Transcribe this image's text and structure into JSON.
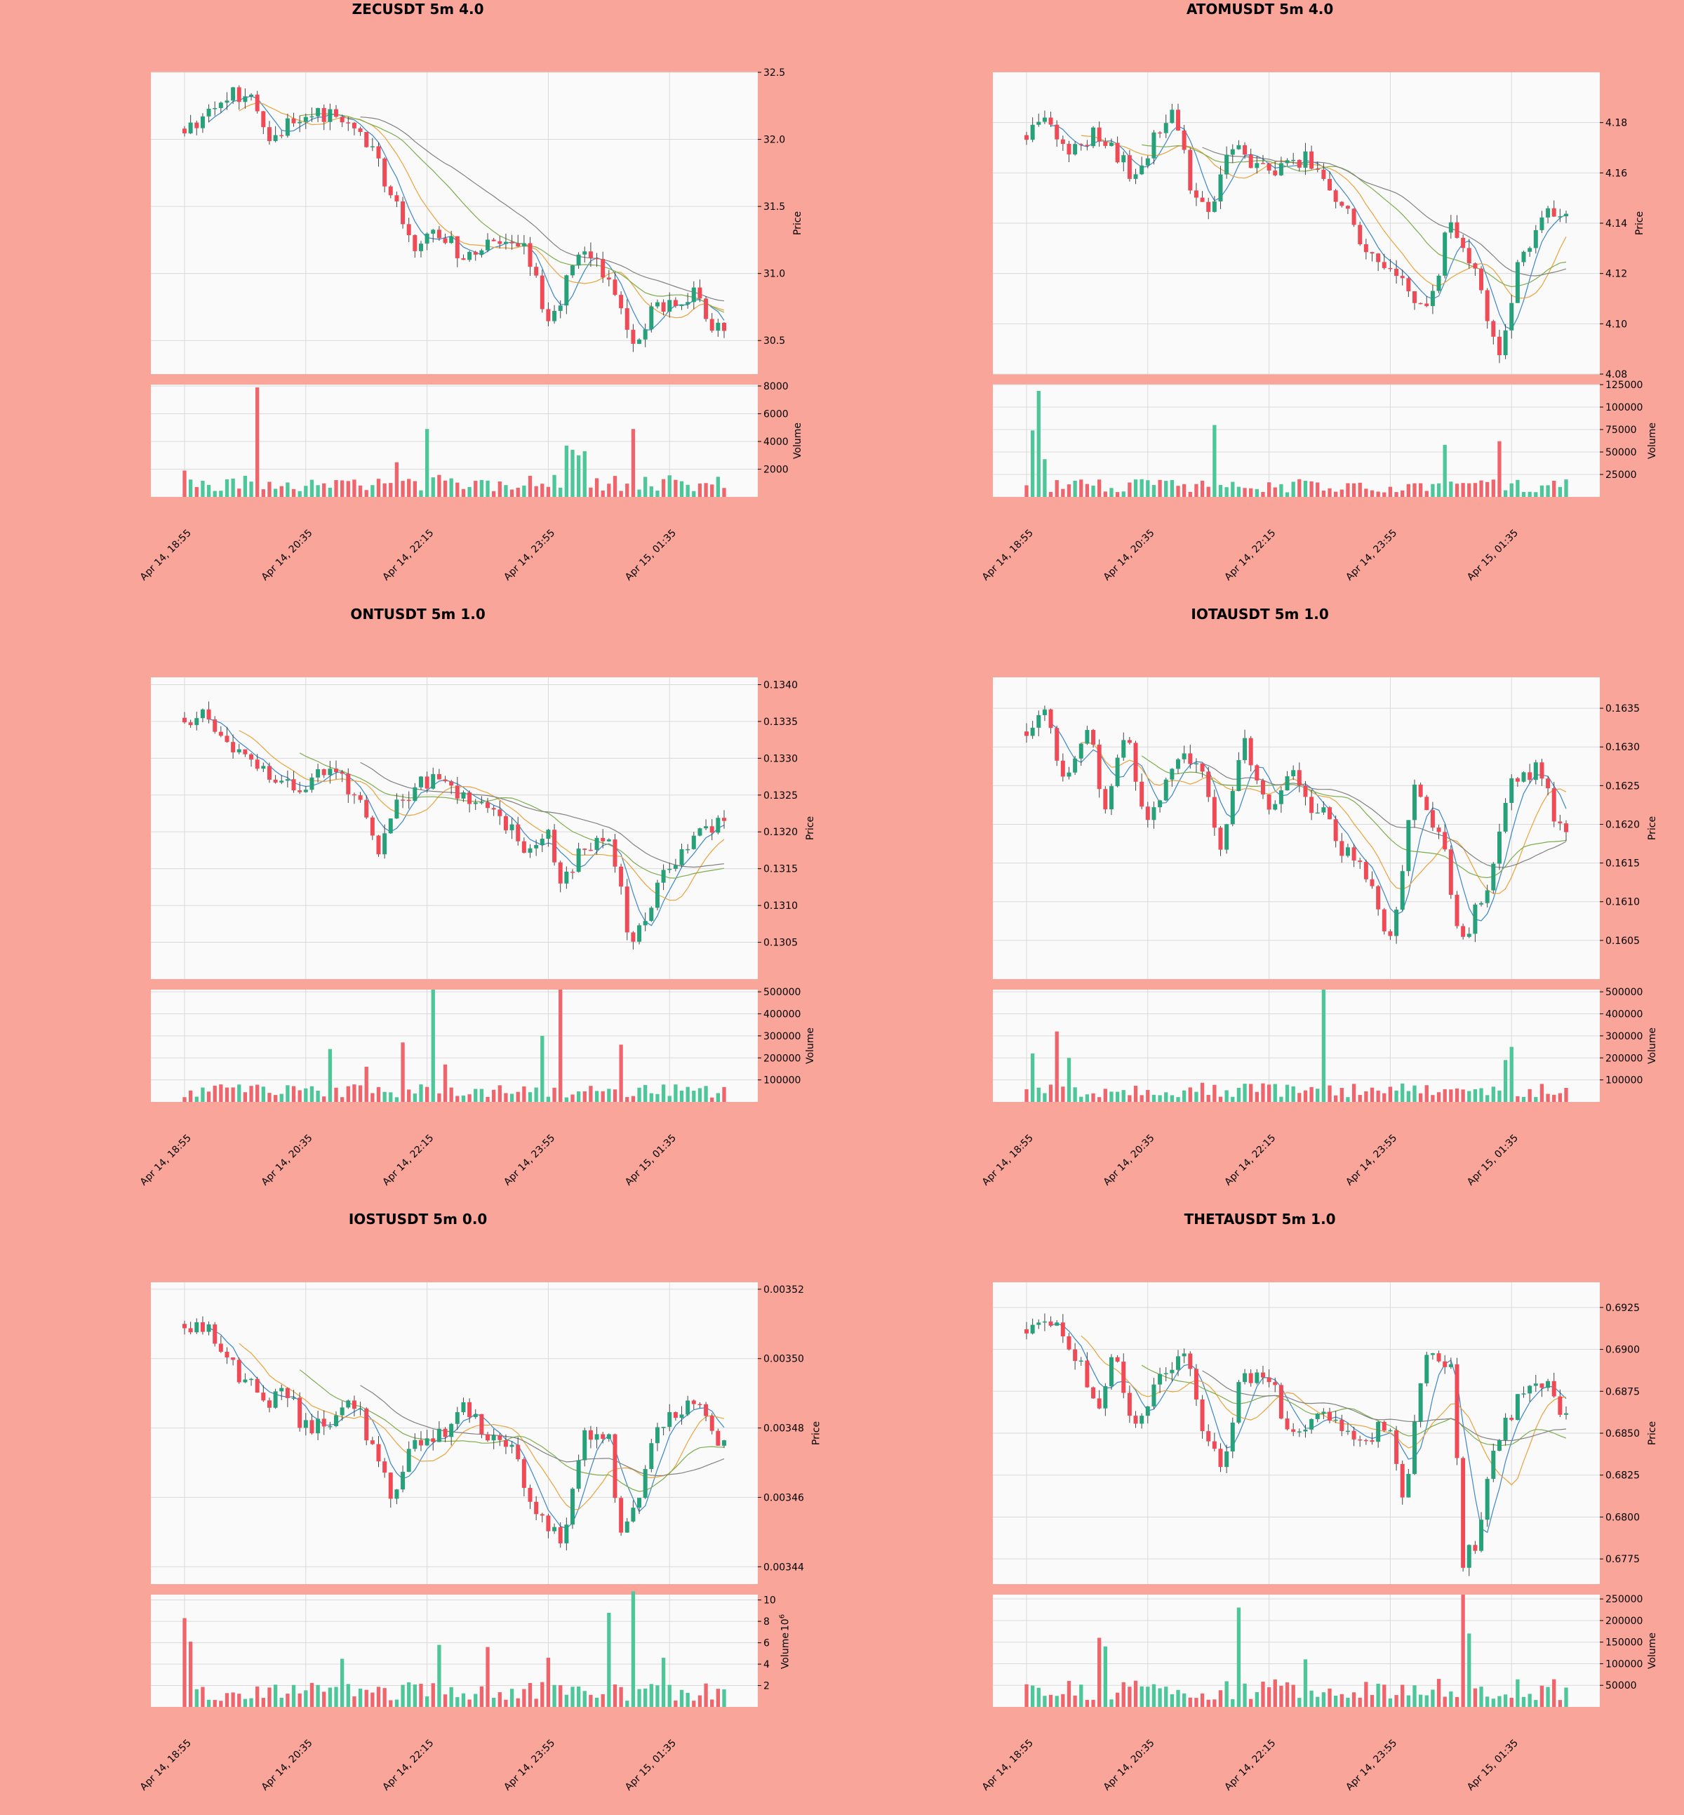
{
  "colors": {
    "figure_bg": "#f9a59a",
    "axes_bg": "#fafafa",
    "up": "#26a17a",
    "down": "#ef4a56",
    "volume_up": "#4dc79a",
    "volume_down": "#f0646c",
    "ma_short": "#3a86c8",
    "ma_mid": "#e8a33c",
    "ma_long": "#808080",
    "ma_extra": "#7cac4c",
    "grid": "#d9d9d9"
  },
  "chart_data": [
    {
      "type": "candlestick",
      "title": "ZECUSDT 5m 4.0",
      "xticks": [
        "Apr 14, 18:55",
        "Apr 14, 20:35",
        "Apr 14, 22:15",
        "Apr 14, 23:55",
        "Apr 15, 01:35"
      ],
      "price_label": "Price",
      "price_ticks": [
        "30.5",
        "31.0",
        "31.5",
        "32.0",
        "32.5"
      ],
      "price_range": [
        30.25,
        32.5
      ],
      "volume_label": "Volume",
      "volume_exponent": "",
      "volume_ticks": [
        "2000",
        "4000",
        "6000",
        "8000"
      ],
      "volume_range": [
        0,
        8100
      ],
      "anchors": [
        [
          0,
          32.08
        ],
        [
          6,
          32.3
        ],
        [
          10,
          32.35
        ],
        [
          14,
          32.05
        ],
        [
          20,
          32.2
        ],
        [
          26,
          32.15
        ],
        [
          30,
          32.0
        ],
        [
          34,
          31.6
        ],
        [
          38,
          31.2
        ],
        [
          42,
          31.3
        ],
        [
          46,
          31.15
        ],
        [
          52,
          31.2
        ],
        [
          56,
          31.2
        ],
        [
          60,
          30.65
        ],
        [
          64,
          31.0
        ],
        [
          66,
          31.15
        ],
        [
          70,
          30.95
        ],
        [
          74,
          30.45
        ],
        [
          78,
          30.75
        ],
        [
          84,
          30.85
        ],
        [
          87,
          30.6
        ]
      ],
      "vol_spikes": [
        [
          0,
          1900
        ],
        [
          12,
          7900
        ],
        [
          35,
          2500
        ],
        [
          40,
          4900
        ],
        [
          63,
          3700
        ],
        [
          64,
          3400
        ],
        [
          65,
          3000
        ],
        [
          66,
          3300
        ],
        [
          74,
          4900
        ]
      ],
      "vol_base": 1100,
      "seed": 11
    },
    {
      "type": "candlestick",
      "title": "ATOMUSDT 5m 4.0",
      "xticks": [
        "Apr 14, 18:55",
        "Apr 14, 20:35",
        "Apr 14, 22:15",
        "Apr 14, 23:55",
        "Apr 15, 01:35"
      ],
      "price_label": "Price",
      "price_ticks": [
        "4.08",
        "4.10",
        "4.12",
        "4.14",
        "4.16",
        "4.18"
      ],
      "price_range": [
        4.08,
        4.2
      ],
      "volume_label": "Volume",
      "volume_exponent": "",
      "volume_ticks": [
        "25000",
        "50000",
        "75000",
        "100000",
        "125000"
      ],
      "volume_range": [
        0,
        125000
      ],
      "anchors": [
        [
          0,
          4.175
        ],
        [
          3,
          4.185
        ],
        [
          6,
          4.17
        ],
        [
          12,
          4.175
        ],
        [
          18,
          4.16
        ],
        [
          24,
          4.185
        ],
        [
          28,
          4.15
        ],
        [
          30,
          4.145
        ],
        [
          34,
          4.17
        ],
        [
          40,
          4.16
        ],
        [
          46,
          4.165
        ],
        [
          52,
          4.15
        ],
        [
          56,
          4.13
        ],
        [
          62,
          4.115
        ],
        [
          66,
          4.105
        ],
        [
          70,
          4.14
        ],
        [
          74,
          4.125
        ],
        [
          76,
          4.1
        ],
        [
          78,
          4.09
        ],
        [
          82,
          4.13
        ],
        [
          86,
          4.145
        ],
        [
          88,
          4.145
        ]
      ],
      "vol_spikes": [
        [
          1,
          74000
        ],
        [
          2,
          118000
        ],
        [
          3,
          42000
        ],
        [
          31,
          80000
        ],
        [
          69,
          58000
        ],
        [
          78,
          62000
        ]
      ],
      "vol_base": 14000,
      "seed": 23
    },
    {
      "type": "candlestick",
      "title": "ONTUSDT 5m 1.0",
      "xticks": [
        "Apr 14, 18:55",
        "Apr 14, 20:35",
        "Apr 14, 22:15",
        "Apr 14, 23:55",
        "Apr 15, 01:35"
      ],
      "price_label": "Price",
      "price_ticks": [
        "0.1305",
        "0.1310",
        "0.1315",
        "0.1320",
        "0.1325",
        "0.1330",
        "0.1335",
        "0.1340"
      ],
      "price_range": [
        0.13,
        0.1341
      ],
      "volume_label": "Volume",
      "volume_exponent": "",
      "volume_ticks": [
        "100000",
        "200000",
        "300000",
        "400000",
        "500000"
      ],
      "volume_range": [
        0,
        510000
      ],
      "anchors": [
        [
          0,
          0.13355
        ],
        [
          3,
          0.1336
        ],
        [
          8,
          0.1332
        ],
        [
          14,
          0.1328
        ],
        [
          18,
          0.1326
        ],
        [
          24,
          0.1329
        ],
        [
          28,
          0.1325
        ],
        [
          32,
          0.1318
        ],
        [
          36,
          0.1325
        ],
        [
          40,
          0.1327
        ],
        [
          46,
          0.1325
        ],
        [
          52,
          0.1322
        ],
        [
          56,
          0.1318
        ],
        [
          60,
          0.132
        ],
        [
          62,
          0.1313
        ],
        [
          66,
          0.1318
        ],
        [
          70,
          0.1318
        ],
        [
          74,
          0.1305
        ],
        [
          76,
          0.1308
        ],
        [
          80,
          0.1316
        ],
        [
          84,
          0.1319
        ],
        [
          88,
          0.1321
        ]
      ],
      "vol_spikes": [
        [
          24,
          240000
        ],
        [
          30,
          160000
        ],
        [
          36,
          270000
        ],
        [
          41,
          510000
        ],
        [
          43,
          170000
        ],
        [
          59,
          300000
        ],
        [
          62,
          510000
        ],
        [
          72,
          260000
        ]
      ],
      "vol_base": 55000,
      "seed": 37
    },
    {
      "type": "candlestick",
      "title": "IOTAUSDT 5m 1.0",
      "xticks": [
        "Apr 14, 18:55",
        "Apr 14, 20:35",
        "Apr 14, 22:15",
        "Apr 14, 23:55",
        "Apr 15, 01:35"
      ],
      "price_label": "Price",
      "price_ticks": [
        "0.1605",
        "0.1610",
        "0.1615",
        "0.1620",
        "0.1625",
        "0.1630",
        "0.1635"
      ],
      "price_range": [
        0.16,
        0.1639
      ],
      "volume_label": "Volume",
      "volume_exponent": "",
      "volume_ticks": [
        "100000",
        "200000",
        "300000",
        "400000",
        "500000"
      ],
      "volume_range": [
        0,
        510000
      ],
      "anchors": [
        [
          0,
          0.1632
        ],
        [
          3,
          0.1635
        ],
        [
          6,
          0.1625
        ],
        [
          10,
          0.1632
        ],
        [
          13,
          0.1622
        ],
        [
          16,
          0.1632
        ],
        [
          20,
          0.162
        ],
        [
          24,
          0.1628
        ],
        [
          28,
          0.1628
        ],
        [
          32,
          0.1617
        ],
        [
          36,
          0.163
        ],
        [
          40,
          0.1622
        ],
        [
          44,
          0.1626
        ],
        [
          48,
          0.1622
        ],
        [
          52,
          0.1617
        ],
        [
          56,
          0.1614
        ],
        [
          60,
          0.1606
        ],
        [
          64,
          0.1624
        ],
        [
          68,
          0.1618
        ],
        [
          72,
          0.1605
        ],
        [
          76,
          0.1612
        ],
        [
          80,
          0.1625
        ],
        [
          84,
          0.1627
        ],
        [
          88,
          0.162
        ]
      ],
      "vol_spikes": [
        [
          1,
          220000
        ],
        [
          5,
          320000
        ],
        [
          7,
          200000
        ],
        [
          49,
          510000
        ],
        [
          80,
          250000
        ],
        [
          79,
          190000
        ]
      ],
      "vol_base": 60000,
      "seed": 51
    },
    {
      "type": "candlestick",
      "title": "IOSTUSDT 5m 0.0",
      "xticks": [
        "Apr 14, 18:55",
        "Apr 14, 20:35",
        "Apr 14, 22:15",
        "Apr 14, 23:55",
        "Apr 15, 01:35"
      ],
      "price_label": "Price",
      "price_ticks": [
        "0.00344",
        "0.00346",
        "0.00348",
        "0.00350",
        "0.00352"
      ],
      "price_range": [
        0.003435,
        0.003522
      ],
      "volume_label": "Volume",
      "volume_exponent": "6",
      "volume_ticks": [
        "2",
        "4",
        "6",
        "8",
        "10"
      ],
      "volume_range": [
        0,
        10.5
      ],
      "anchors": [
        [
          0,
          0.00351
        ],
        [
          3,
          0.00351
        ],
        [
          6,
          0.0035
        ],
        [
          10,
          0.003495
        ],
        [
          14,
          0.003488
        ],
        [
          16,
          0.003493
        ],
        [
          20,
          0.00348
        ],
        [
          24,
          0.003482
        ],
        [
          28,
          0.003486
        ],
        [
          31,
          0.003476
        ],
        [
          34,
          0.003461
        ],
        [
          38,
          0.003476
        ],
        [
          42,
          0.003478
        ],
        [
          46,
          0.003486
        ],
        [
          50,
          0.003478
        ],
        [
          54,
          0.003474
        ],
        [
          58,
          0.003455
        ],
        [
          62,
          0.003448
        ],
        [
          66,
          0.003478
        ],
        [
          70,
          0.003476
        ],
        [
          72,
          0.003448
        ],
        [
          74,
          0.003457
        ],
        [
          78,
          0.003478
        ],
        [
          82,
          0.003486
        ],
        [
          86,
          0.003485
        ],
        [
          88,
          0.003475
        ]
      ],
      "vol_spikes": [
        [
          0,
          8.3
        ],
        [
          1,
          6.1
        ],
        [
          26,
          4.5
        ],
        [
          42,
          5.8
        ],
        [
          50,
          5.6
        ],
        [
          60,
          4.6
        ],
        [
          70,
          8.8
        ],
        [
          74,
          10.8
        ],
        [
          79,
          4.6
        ]
      ],
      "vol_base": 1.6,
      "seed": 67
    },
    {
      "type": "candlestick",
      "title": "THETAUSDT 5m 1.0",
      "xticks": [
        "Apr 14, 18:55",
        "Apr 14, 20:35",
        "Apr 14, 22:15",
        "Apr 14, 23:55",
        "Apr 15, 01:35"
      ],
      "price_label": "Price",
      "price_ticks": [
        "0.6775",
        "0.6800",
        "0.6825",
        "0.6850",
        "0.6875",
        "0.6900",
        "0.6925"
      ],
      "price_range": [
        0.676,
        0.694
      ],
      "volume_label": "Volume",
      "volume_exponent": "",
      "volume_ticks": [
        "50000",
        "100000",
        "150000",
        "200000",
        "250000"
      ],
      "volume_range": [
        0,
        260000
      ],
      "anchors": [
        [
          0,
          0.6912
        ],
        [
          4,
          0.6915
        ],
        [
          8,
          0.6895
        ],
        [
          12,
          0.687
        ],
        [
          14,
          0.6895
        ],
        [
          18,
          0.6855
        ],
        [
          22,
          0.6885
        ],
        [
          26,
          0.6895
        ],
        [
          30,
          0.6848
        ],
        [
          32,
          0.6825
        ],
        [
          36,
          0.6885
        ],
        [
          40,
          0.688
        ],
        [
          44,
          0.6848
        ],
        [
          48,
          0.6862
        ],
        [
          52,
          0.6855
        ],
        [
          56,
          0.6848
        ],
        [
          60,
          0.6855
        ],
        [
          62,
          0.6812
        ],
        [
          66,
          0.6895
        ],
        [
          70,
          0.689
        ],
        [
          72,
          0.6775
        ],
        [
          74,
          0.6785
        ],
        [
          78,
          0.685
        ],
        [
          82,
          0.6875
        ],
        [
          86,
          0.6882
        ],
        [
          88,
          0.6862
        ]
      ],
      "vol_spikes": [
        [
          12,
          160000
        ],
        [
          13,
          140000
        ],
        [
          35,
          230000
        ],
        [
          46,
          110000
        ],
        [
          72,
          260000
        ],
        [
          73,
          170000
        ]
      ],
      "vol_base": 45000,
      "seed": 83
    }
  ]
}
